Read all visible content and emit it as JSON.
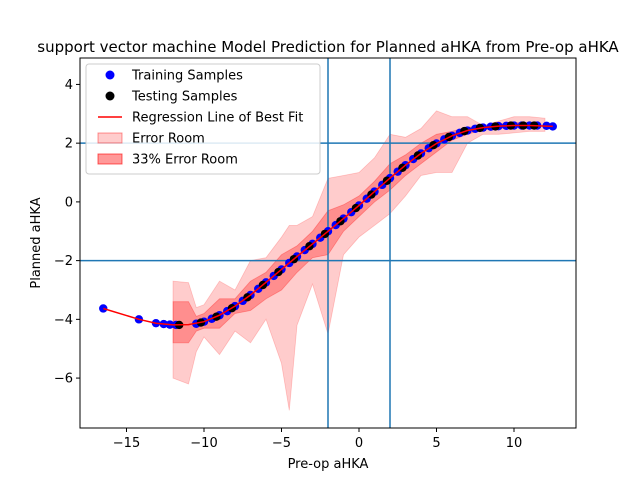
{
  "chart_data": {
    "type": "scatter",
    "title": "support vector machine Model Prediction for Planned aHKA from Pre-op aHKA",
    "xlabel": "Pre-op aHKA",
    "ylabel": "Planned aHKA",
    "xlim": [
      -18,
      14
    ],
    "ylim": [
      -7.7,
      4.9
    ],
    "xticks": [
      -15,
      -10,
      -5,
      0,
      5,
      10
    ],
    "yticks": [
      -6,
      -4,
      -2,
      0,
      2,
      4
    ],
    "xtick_labels": [
      "−15",
      "−10",
      "−5",
      "0",
      "5",
      "10"
    ],
    "ytick_labels": [
      "−6",
      "−4",
      "−2",
      "0",
      "2",
      "4"
    ],
    "reference_lines": {
      "vertical": [
        -2,
        2
      ],
      "horizontal": [
        -2,
        2
      ],
      "color": "#1f77b4"
    },
    "grid": false,
    "legend_position": "top-left",
    "legend": [
      {
        "label": "Training Samples",
        "kind": "marker",
        "color": "#0000ff"
      },
      {
        "label": "Testing Samples",
        "kind": "marker",
        "color": "#000000"
      },
      {
        "label": "Regression Line of Best Fit",
        "kind": "line",
        "color": "#ff0000"
      },
      {
        "label": "Error Room",
        "kind": "patch",
        "color": "#ff0000",
        "alpha": 0.2
      },
      {
        "label": "33% Error Room",
        "kind": "patch",
        "color": "#ff0000",
        "alpha": 0.4
      }
    ],
    "series": [
      {
        "name": "Training Samples",
        "color": "#0000ff",
        "x": [
          -16.5,
          -14.2,
          -13.1,
          -12.6,
          -12.2,
          -11.8,
          -10.5,
          -10.0,
          -9.5,
          -9.0,
          -8.5,
          -8.0,
          -7.5,
          -7.0,
          -6.5,
          -6.0,
          -5.5,
          -5.0,
          -4.5,
          -4.0,
          -3.5,
          -3.0,
          -2.5,
          -2.0,
          -1.5,
          -1.0,
          -0.5,
          0.0,
          0.5,
          1.0,
          1.5,
          2.0,
          2.5,
          3.0,
          3.5,
          4.0,
          4.5,
          5.0,
          5.5,
          6.0,
          6.5,
          7.0,
          7.5,
          8.0,
          8.5,
          9.0,
          9.5,
          10.0,
          10.5,
          11.0,
          11.5,
          12.1,
          12.5
        ],
        "y": [
          -3.63,
          -4.0,
          -4.13,
          -4.16,
          -4.18,
          -4.19,
          -4.15,
          -4.08,
          -3.98,
          -3.86,
          -3.72,
          -3.55,
          -3.37,
          -3.17,
          -2.96,
          -2.74,
          -2.52,
          -2.3,
          -2.08,
          -1.86,
          -1.64,
          -1.43,
          -1.22,
          -1.0,
          -0.79,
          -0.57,
          -0.35,
          -0.12,
          0.11,
          0.35,
          0.58,
          0.81,
          1.03,
          1.25,
          1.46,
          1.65,
          1.83,
          1.99,
          2.13,
          2.25,
          2.35,
          2.43,
          2.49,
          2.53,
          2.56,
          2.58,
          2.59,
          2.6,
          2.6,
          2.6,
          2.6,
          2.59,
          2.57
        ]
      },
      {
        "name": "Testing Samples",
        "color": "#000000",
        "x": [
          -11.6,
          -10.2,
          -9.2,
          -8.2,
          -7.2,
          -6.2,
          -5.2,
          -4.2,
          -3.2,
          -2.2,
          -1.2,
          -0.2,
          0.8,
          1.8,
          2.8,
          3.8,
          4.8,
          5.8,
          6.8,
          7.8,
          8.8,
          9.8,
          10.6,
          11.3
        ],
        "y": [
          -4.19,
          -4.11,
          -3.91,
          -3.62,
          -3.25,
          -2.83,
          -2.39,
          -1.95,
          -1.51,
          -1.09,
          -0.66,
          -0.21,
          0.25,
          0.72,
          1.16,
          1.58,
          1.93,
          2.21,
          2.41,
          2.52,
          2.57,
          2.6,
          2.6,
          2.6
        ]
      },
      {
        "name": "Regression Line of Best Fit",
        "color": "#ff0000",
        "x": [
          -16.5,
          -14.2,
          -13.1,
          -12.0,
          -11.0,
          -10.0,
          -9.0,
          -8.0,
          -7.0,
          -6.0,
          -5.0,
          -4.0,
          -3.0,
          -2.0,
          -1.0,
          0.0,
          1.0,
          2.0,
          3.0,
          4.0,
          5.0,
          6.0,
          7.0,
          8.0,
          9.0,
          10.0,
          11.0,
          12.5
        ],
        "y": [
          -3.63,
          -4.0,
          -4.13,
          -4.19,
          -4.18,
          -4.08,
          -3.86,
          -3.55,
          -3.17,
          -2.74,
          -2.3,
          -1.86,
          -1.43,
          -1.0,
          -0.57,
          -0.12,
          0.35,
          0.81,
          1.25,
          1.65,
          1.99,
          2.25,
          2.43,
          2.53,
          2.58,
          2.6,
          2.6,
          2.57
        ]
      }
    ],
    "error_room": {
      "x": [
        -12.0,
        -11.0,
        -10.5,
        -10.0,
        -9.0,
        -8.0,
        -7.0,
        -6.0,
        -5.0,
        -4.5,
        -4.0,
        -3.0,
        -2.0,
        -1.0,
        0.0,
        1.0,
        2.0,
        3.0,
        4.0,
        5.0,
        6.0,
        7.0,
        8.0,
        9.0,
        10.0,
        11.0,
        12.0
      ],
      "upper": [
        -2.7,
        -2.75,
        -3.6,
        -3.5,
        -2.7,
        -3.0,
        -2.0,
        -1.9,
        -1.2,
        -0.8,
        -0.8,
        -0.5,
        0.8,
        0.9,
        1.0,
        1.5,
        2.3,
        2.2,
        2.5,
        3.1,
        2.9,
        2.9,
        2.6,
        2.75,
        2.9,
        2.9,
        2.85
      ],
      "lower": [
        -6.0,
        -6.2,
        -5.1,
        -4.6,
        -5.2,
        -4.4,
        -4.8,
        -4.0,
        -5.5,
        -7.1,
        -4.2,
        -2.8,
        -4.5,
        -1.8,
        -1.2,
        -0.8,
        -0.4,
        0.2,
        0.9,
        1.0,
        1.0,
        2.0,
        2.3,
        2.3,
        2.35,
        2.4,
        2.4
      ]
    },
    "error_room_33": {
      "x": [
        -12.0,
        -11.0,
        -10.5,
        -10.0,
        -9.0,
        -8.0,
        -7.0,
        -6.0,
        -5.0,
        -4.0,
        -3.0,
        -2.0,
        -1.0,
        0.0,
        1.0,
        2.0,
        3.0,
        4.0,
        5.0,
        6.0,
        7.0,
        8.0,
        9.0,
        10.0,
        11.0
      ],
      "upper": [
        -3.4,
        -3.4,
        -3.9,
        -3.8,
        -3.3,
        -3.3,
        -2.7,
        -2.4,
        -1.8,
        -1.5,
        -1.0,
        -0.3,
        -0.1,
        0.2,
        0.7,
        1.3,
        1.6,
        2.0,
        2.3,
        2.4,
        2.55,
        2.55,
        2.65,
        2.7,
        2.7
      ],
      "lower": [
        -4.8,
        -4.8,
        -4.4,
        -4.3,
        -4.3,
        -3.8,
        -3.7,
        -3.3,
        -3.0,
        -2.4,
        -1.9,
        -1.8,
        -1.0,
        -0.5,
        0.0,
        0.4,
        0.9,
        1.3,
        1.7,
        2.1,
        2.3,
        2.45,
        2.5,
        2.55,
        2.55
      ]
    }
  }
}
